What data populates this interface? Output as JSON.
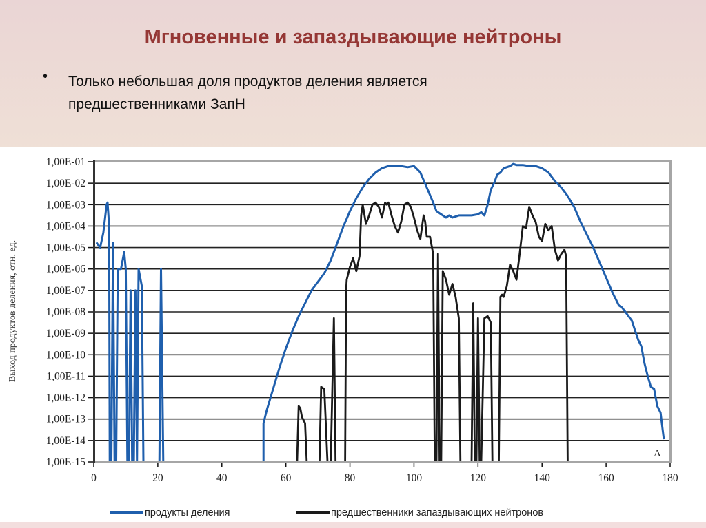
{
  "slide": {
    "title": "Мгновенные и запаздывающие нейтроны",
    "bullet_symbol": "•",
    "bullet_text": "Только небольшая доля продуктов деления является предшественниками ЗапН"
  },
  "colors": {
    "title": "#953735",
    "series_fission_products": "#1f5fad",
    "series_delayed_neutron_precursors": "#1a1a1a",
    "grid": "#222222",
    "frame": "#a6a6a6"
  },
  "chart_data": {
    "type": "line",
    "title": "",
    "xlabel": "",
    "ylabel": "Выход продуктов деления, отн. ед.",
    "yscale": "log",
    "xlim": [
      0,
      180
    ],
    "ylim": [
      1e-15,
      0.1
    ],
    "x_ticks": [
      "0",
      "20",
      "40",
      "60",
      "80",
      "100",
      "120",
      "140",
      "160",
      "180"
    ],
    "y_ticks": [
      "1,00E-01",
      "1,00E-02",
      "1,00E-03",
      "1,00E-04",
      "1,00E-05",
      "1,00E-06",
      "1,00E-07",
      "1,00E-08",
      "1,00E-09",
      "1,00E-10",
      "1,00E-11",
      "1,00E-12",
      "1,00E-13",
      "1,00E-14",
      "1,00E-15"
    ],
    "grid": true,
    "legend_position": "bottom",
    "annotation": "A",
    "series": [
      {
        "name": "продукты деления",
        "color": "#1f5fad",
        "points_log10": [
          [
            1,
            -4.8
          ],
          [
            2,
            -5.0
          ],
          [
            3,
            -4.3
          ],
          [
            4,
            -3.0
          ],
          [
            4.3,
            -2.9
          ],
          [
            4.8,
            -4.0
          ],
          [
            5,
            -15
          ],
          [
            5.5,
            -15
          ],
          [
            6,
            -4.8
          ],
          [
            6.5,
            -15
          ],
          [
            7,
            -15
          ],
          [
            7.5,
            -6.0
          ],
          [
            8.5,
            -6.0
          ],
          [
            9.5,
            -5.2
          ],
          [
            10,
            -6.0
          ],
          [
            10.5,
            -15
          ],
          [
            11,
            -15
          ],
          [
            11.5,
            -7.0
          ],
          [
            12,
            -15
          ],
          [
            12.5,
            -15
          ],
          [
            13,
            -7.0
          ],
          [
            13.5,
            -15
          ],
          [
            14,
            -6.0
          ],
          [
            15,
            -6.8
          ],
          [
            15.5,
            -15
          ],
          [
            20.5,
            -15
          ],
          [
            21,
            -6.0
          ],
          [
            21.7,
            -15
          ],
          [
            53,
            -15
          ],
          [
            53,
            -13.2
          ],
          [
            54,
            -12.6
          ],
          [
            56,
            -11.6
          ],
          [
            58,
            -10.6
          ],
          [
            60,
            -9.7
          ],
          [
            62,
            -8.9
          ],
          [
            64,
            -8.2
          ],
          [
            66,
            -7.6
          ],
          [
            68,
            -7.0
          ],
          [
            70,
            -6.6
          ],
          [
            72,
            -6.2
          ],
          [
            74,
            -5.6
          ],
          [
            76,
            -4.8
          ],
          [
            78,
            -4.0
          ],
          [
            80,
            -3.3
          ],
          [
            82,
            -2.7
          ],
          [
            84,
            -2.2
          ],
          [
            86,
            -1.8
          ],
          [
            88,
            -1.5
          ],
          [
            90,
            -1.3
          ],
          [
            92,
            -1.2
          ],
          [
            94,
            -1.2
          ],
          [
            96,
            -1.2
          ],
          [
            98,
            -1.25
          ],
          [
            100,
            -1.2
          ],
          [
            102,
            -1.5
          ],
          [
            104,
            -2.2
          ],
          [
            106,
            -2.9
          ],
          [
            107,
            -3.3
          ],
          [
            108,
            -3.4
          ],
          [
            110,
            -3.6
          ],
          [
            111,
            -3.5
          ],
          [
            112,
            -3.6
          ],
          [
            114,
            -3.5
          ],
          [
            116,
            -3.5
          ],
          [
            118,
            -3.5
          ],
          [
            120,
            -3.45
          ],
          [
            121,
            -3.35
          ],
          [
            122,
            -3.5
          ],
          [
            123,
            -3.0
          ],
          [
            124,
            -2.3
          ],
          [
            125,
            -2.0
          ],
          [
            126,
            -1.6
          ],
          [
            127,
            -1.5
          ],
          [
            128,
            -1.3
          ],
          [
            130,
            -1.2
          ],
          [
            131,
            -1.1
          ],
          [
            132,
            -1.15
          ],
          [
            134,
            -1.15
          ],
          [
            136,
            -1.2
          ],
          [
            138,
            -1.2
          ],
          [
            140,
            -1.3
          ],
          [
            142,
            -1.5
          ],
          [
            144,
            -1.9
          ],
          [
            146,
            -2.2
          ],
          [
            148,
            -2.6
          ],
          [
            150,
            -3.1
          ],
          [
            152,
            -3.8
          ],
          [
            154,
            -4.4
          ],
          [
            156,
            -5.0
          ],
          [
            158,
            -5.7
          ],
          [
            160,
            -6.4
          ],
          [
            162,
            -7.1
          ],
          [
            164,
            -7.7
          ],
          [
            165,
            -7.8
          ],
          [
            166,
            -8.0
          ],
          [
            168,
            -8.4
          ],
          [
            170,
            -9.3
          ],
          [
            171,
            -9.6
          ],
          [
            172,
            -10.4
          ],
          [
            173,
            -11.0
          ],
          [
            174,
            -11.5
          ],
          [
            175,
            -11.6
          ],
          [
            176,
            -12.4
          ],
          [
            177,
            -12.7
          ],
          [
            178,
            -13.9
          ]
        ]
      },
      {
        "name": "предшественники запаздывающих нейтронов",
        "color": "#1a1a1a",
        "points_log10": [
          [
            63.5,
            -15
          ],
          [
            64,
            -12.4
          ],
          [
            64.5,
            -12.5
          ],
          [
            65,
            -12.9
          ],
          [
            66,
            -13.2
          ],
          [
            66.5,
            -15
          ],
          [
            70.5,
            -15
          ],
          [
            71,
            -11.5
          ],
          [
            72,
            -11.6
          ],
          [
            73,
            -15
          ],
          [
            74,
            -15
          ],
          [
            75,
            -8.3
          ],
          [
            75.5,
            -15
          ],
          [
            76.2,
            -15
          ],
          [
            78.5,
            -15
          ],
          [
            78.8,
            -7.0
          ],
          [
            79,
            -6.5
          ],
          [
            80,
            -5.9
          ],
          [
            81,
            -5.5
          ],
          [
            82,
            -6.1
          ],
          [
            83,
            -5.4
          ],
          [
            83.5,
            -3.5
          ],
          [
            84,
            -3.0
          ],
          [
            85,
            -3.9
          ],
          [
            86,
            -3.5
          ],
          [
            87,
            -3.0
          ],
          [
            88,
            -2.9
          ],
          [
            89,
            -3.1
          ],
          [
            90,
            -3.6
          ],
          [
            91,
            -2.9
          ],
          [
            91.5,
            -3.0
          ],
          [
            92,
            -2.9
          ],
          [
            93,
            -3.5
          ],
          [
            94,
            -4.0
          ],
          [
            95,
            -4.3
          ],
          [
            96,
            -3.8
          ],
          [
            97,
            -3.0
          ],
          [
            98,
            -2.9
          ],
          [
            99,
            -3.1
          ],
          [
            100,
            -3.6
          ],
          [
            101,
            -4.2
          ],
          [
            102,
            -4.6
          ],
          [
            103,
            -3.5
          ],
          [
            103.5,
            -3.8
          ],
          [
            104,
            -4.5
          ],
          [
            105,
            -4.5
          ],
          [
            106,
            -5.3
          ],
          [
            106.5,
            -15
          ],
          [
            107,
            -15
          ],
          [
            107.5,
            -5.3
          ],
          [
            108,
            -15
          ],
          [
            108.5,
            -15
          ],
          [
            109,
            -6.1
          ],
          [
            110,
            -6.5
          ],
          [
            111,
            -7.2
          ],
          [
            112,
            -6.7
          ],
          [
            113,
            -7.3
          ],
          [
            114,
            -8.3
          ],
          [
            114.5,
            -15
          ],
          [
            118,
            -15
          ],
          [
            118.5,
            -7.6
          ],
          [
            119,
            -15
          ],
          [
            119.5,
            -15
          ],
          [
            120,
            -8.3
          ],
          [
            120.5,
            -15
          ],
          [
            121,
            -15
          ],
          [
            122,
            -8.3
          ],
          [
            123,
            -8.2
          ],
          [
            124,
            -8.5
          ],
          [
            124.5,
            -15
          ],
          [
            126.5,
            -15
          ],
          [
            127,
            -7.3
          ],
          [
            127.5,
            -7.2
          ],
          [
            128,
            -7.3
          ],
          [
            129,
            -6.8
          ],
          [
            130,
            -5.8
          ],
          [
            131,
            -6.1
          ],
          [
            132,
            -6.5
          ],
          [
            133,
            -5.3
          ],
          [
            134,
            -4.0
          ],
          [
            135,
            -4.1
          ],
          [
            136,
            -3.1
          ],
          [
            137,
            -3.5
          ],
          [
            138,
            -3.8
          ],
          [
            139,
            -4.5
          ],
          [
            140,
            -4.7
          ],
          [
            141,
            -3.9
          ],
          [
            142,
            -4.2
          ],
          [
            143,
            -4.0
          ],
          [
            144,
            -5.1
          ],
          [
            145,
            -5.6
          ],
          [
            146,
            -5.3
          ],
          [
            147,
            -5.1
          ],
          [
            147.5,
            -5.4
          ],
          [
            148,
            -15
          ]
        ]
      }
    ]
  },
  "legend": {
    "items": [
      {
        "label": "продукты деления",
        "color": "#1f5fad"
      },
      {
        "label": "предшественники запаздывающих нейтронов",
        "color": "#1a1a1a"
      }
    ]
  }
}
